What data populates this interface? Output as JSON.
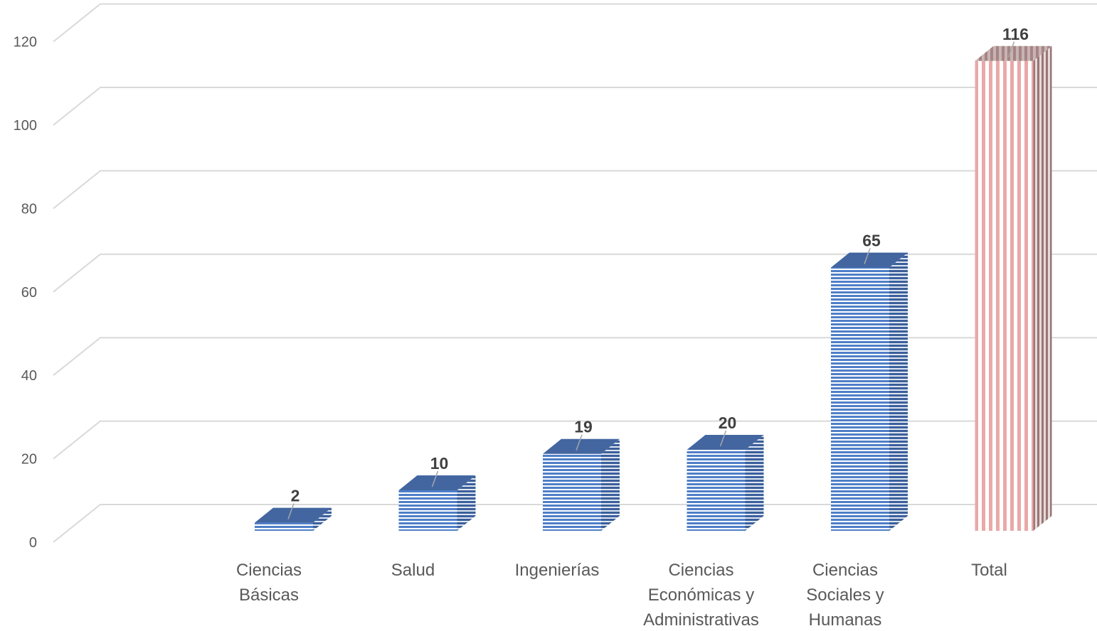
{
  "chart_data": {
    "type": "bar",
    "style": "3d-column",
    "categories": [
      [
        "Ciencias",
        "Básicas"
      ],
      [
        "Salud"
      ],
      [
        "Ingenierías"
      ],
      [
        "Ciencias",
        "Económicas y",
        "Administrativas"
      ],
      [
        "Ciencias",
        "Sociales y",
        "Humanas"
      ],
      [
        "Total"
      ]
    ],
    "values": [
      2,
      10,
      19,
      20,
      65,
      116
    ],
    "data_labels": [
      "2",
      "10",
      "19",
      "20",
      "65",
      "116"
    ],
    "yticks": [
      "0",
      "20",
      "40",
      "60",
      "80",
      "100",
      "120"
    ],
    "ylim": [
      0,
      120
    ],
    "grid": true,
    "legend": "none",
    "colors": {
      "series_main": "#4472c4",
      "series_main_dark": "#2f5597",
      "series_highlight": "#e9a6a6",
      "series_highlight_dark": "#9e7b7b",
      "grid": "#d9d9d9",
      "text": "#595959"
    }
  }
}
